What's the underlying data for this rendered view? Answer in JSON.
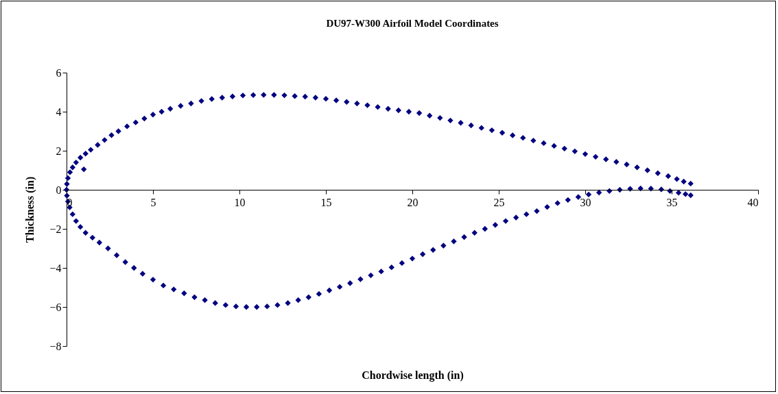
{
  "chart_data": {
    "type": "scatter",
    "title": "DU97-W300 Airfoil Model Coordinates",
    "xlabel": "Chordwise length (in)",
    "ylabel": "Thickness (in)",
    "xlim": [
      0,
      40
    ],
    "xticks": [
      0,
      5,
      10,
      15,
      20,
      25,
      30,
      35,
      40
    ],
    "ylim": [
      -8,
      6
    ],
    "yticks": [
      -8,
      -6,
      -4,
      -2,
      0,
      2,
      4,
      6
    ],
    "grid": false,
    "legend": false,
    "marker": "diamond",
    "series": [
      {
        "color": "#000080",
        "x": [
          0,
          0.02,
          0.08,
          0.2,
          0.35,
          0.55,
          0.8,
          1.1,
          1.4,
          1.8,
          2.2,
          2.6,
          3.0,
          3.5,
          4.0,
          4.5,
          5.0,
          5.5,
          6.0,
          6.6,
          7.2,
          7.8,
          8.4,
          9.0,
          9.6,
          10.2,
          10.8,
          11.4,
          12.0,
          12.6,
          13.2,
          13.8,
          14.4,
          15.0,
          15.6,
          16.2,
          16.8,
          17.4,
          18.0,
          18.6,
          19.2,
          19.8,
          20.4,
          21.0,
          21.6,
          22.2,
          22.8,
          23.4,
          24.0,
          24.6,
          25.2,
          25.8,
          26.4,
          27.0,
          27.6,
          28.2,
          28.8,
          29.4,
          30.0,
          30.6,
          31.2,
          31.8,
          32.4,
          33.0,
          33.6,
          34.2,
          34.8,
          35.3,
          35.7,
          36.1,
          1.0,
          0.02,
          0.08,
          0.18,
          0.35,
          0.55,
          0.8,
          1.1,
          1.5,
          1.9,
          2.4,
          2.9,
          3.4,
          3.9,
          4.4,
          5.0,
          5.6,
          6.2,
          6.8,
          7.4,
          8.0,
          8.6,
          9.2,
          9.8,
          10.4,
          11.0,
          11.6,
          12.2,
          12.8,
          13.4,
          14.0,
          14.6,
          15.2,
          15.8,
          16.4,
          17.0,
          17.6,
          18.2,
          18.8,
          19.4,
          20.0,
          20.6,
          21.2,
          21.8,
          22.4,
          23.0,
          23.6,
          24.2,
          24.8,
          25.4,
          26.0,
          26.6,
          27.2,
          27.8,
          28.4,
          29.0,
          29.6,
          30.2,
          30.8,
          31.4,
          32.0,
          32.6,
          33.2,
          33.8,
          34.4,
          34.9,
          35.4,
          35.8,
          36.1
        ],
        "values": [
          0,
          0.3,
          0.6,
          0.9,
          1.15,
          1.4,
          1.65,
          1.85,
          2.05,
          2.3,
          2.55,
          2.8,
          3.0,
          3.25,
          3.45,
          3.65,
          3.85,
          4.0,
          4.15,
          4.3,
          4.42,
          4.55,
          4.65,
          4.72,
          4.78,
          4.83,
          4.85,
          4.86,
          4.86,
          4.84,
          4.8,
          4.77,
          4.72,
          4.66,
          4.58,
          4.5,
          4.42,
          4.33,
          4.24,
          4.15,
          4.07,
          4.0,
          3.93,
          3.8,
          3.68,
          3.55,
          3.43,
          3.3,
          3.17,
          3.05,
          2.92,
          2.79,
          2.66,
          2.52,
          2.39,
          2.25,
          2.11,
          1.97,
          1.83,
          1.69,
          1.56,
          1.43,
          1.3,
          1.15,
          1.0,
          0.85,
          0.7,
          0.55,
          0.42,
          0.32,
          1.05,
          -0.3,
          -0.6,
          -0.9,
          -1.25,
          -1.6,
          -1.9,
          -2.2,
          -2.45,
          -2.7,
          -3.0,
          -3.35,
          -3.7,
          -4.0,
          -4.3,
          -4.6,
          -4.9,
          -5.1,
          -5.3,
          -5.5,
          -5.65,
          -5.8,
          -5.9,
          -5.97,
          -6.0,
          -6.0,
          -5.97,
          -5.9,
          -5.8,
          -5.65,
          -5.5,
          -5.33,
          -5.15,
          -4.97,
          -4.78,
          -4.58,
          -4.38,
          -4.18,
          -3.97,
          -3.75,
          -3.52,
          -3.3,
          -3.08,
          -2.86,
          -2.64,
          -2.42,
          -2.2,
          -2.0,
          -1.8,
          -1.6,
          -1.42,
          -1.25,
          -1.09,
          -0.88,
          -0.68,
          -0.52,
          -0.37,
          -0.24,
          -0.14,
          -0.06,
          0.0,
          0.05,
          0.07,
          0.06,
          0.02,
          -0.06,
          -0.15,
          -0.22,
          -0.28
        ]
      }
    ]
  }
}
